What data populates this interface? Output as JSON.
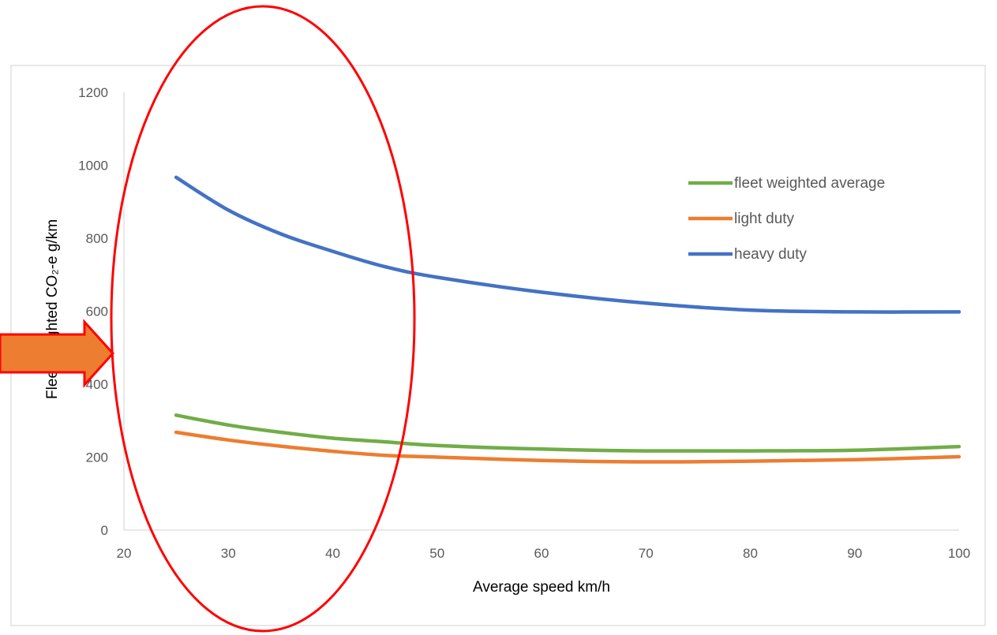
{
  "chart_data": {
    "type": "line",
    "xlabel": "Average speed km/h",
    "ylabel": "Fleet weighted CO₂-e g/km",
    "xlim": [
      20,
      100
    ],
    "ylim": [
      0,
      1200
    ],
    "x_ticks": [
      20,
      30,
      40,
      50,
      60,
      70,
      80,
      90,
      100
    ],
    "y_ticks": [
      0,
      200,
      400,
      600,
      800,
      1000,
      1200
    ],
    "grid": false,
    "legend_position": "right",
    "x": [
      25,
      30,
      35,
      40,
      45,
      50,
      60,
      70,
      80,
      90,
      100
    ],
    "series": [
      {
        "name": "fleet weighted average",
        "color": "#70ad47",
        "values": [
          315,
          288,
          268,
          252,
          242,
          232,
          222,
          217,
          217,
          219,
          229
        ]
      },
      {
        "name": "light duty",
        "color": "#ed7d31",
        "values": [
          268,
          247,
          230,
          216,
          205,
          200,
          191,
          187,
          189,
          193,
          201
        ]
      },
      {
        "name": "heavy duty",
        "color": "#4472c4",
        "values": [
          967,
          877,
          812,
          764,
          722,
          693,
          652,
          622,
          603,
          598,
          598
        ]
      }
    ]
  },
  "annotations": {
    "highlight_shape": "ellipse",
    "highlight_color": "#ff0000",
    "highlight_range_x": [
      20,
      47
    ],
    "arrow_fill": "#ed7d31",
    "arrow_outline": "#ff0000"
  }
}
